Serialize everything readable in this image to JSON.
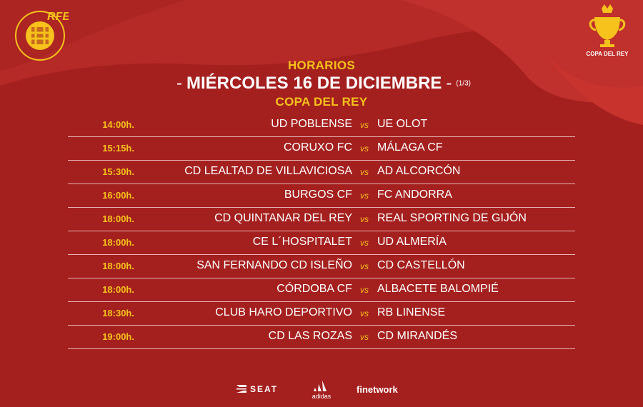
{
  "colors": {
    "background": "#a4201f",
    "accent_yellow": "#f6c21b",
    "text_white": "#ffffff",
    "row_divider": "#e6b3b3"
  },
  "header": {
    "label": "HORARIOS",
    "title": "MIÉRCOLES 16 DE DICIEMBRE",
    "dash_left": "-",
    "dash_right": "-",
    "page_indicator": "(1/3)",
    "competition": "COPA DEL REY"
  },
  "brand": {
    "left_logo_text": "RFEF",
    "right_logo_text": "COPA DEL REY"
  },
  "vs_label": "vs",
  "matches": [
    {
      "time": "14:00h.",
      "home": "UD POBLENSE",
      "away": "UE OLOT"
    },
    {
      "time": "15:15h.",
      "home": "CORUXO FC",
      "away": "MÁLAGA CF"
    },
    {
      "time": "15:30h.",
      "home": "CD LEALTAD DE VILLAVICIOSA",
      "away": "AD ALCORCÓN"
    },
    {
      "time": "16:00h.",
      "home": "BURGOS CF",
      "away": "FC ANDORRA"
    },
    {
      "time": "18:00h.",
      "home": "CD QUINTANAR DEL REY",
      "away": "REAL SPORTING DE GIJÓN"
    },
    {
      "time": "18:00h.",
      "home": "CE L´HOSPITALET",
      "away": "UD ALMERÍA"
    },
    {
      "time": "18:00h.",
      "home": "SAN FERNANDO CD ISLEÑO",
      "away": "CD CASTELLÓN"
    },
    {
      "time": "18:00h.",
      "home": "CÓRDOBA CF",
      "away": "ALBACETE BALOMPIÉ"
    },
    {
      "time": "18:30h.",
      "home": "CLUB HARO DEPORTIVO",
      "away": "RB LINENSE"
    },
    {
      "time": "19:00h.",
      "home": "CD LAS ROZAS",
      "away": "CD MIRANDÉS"
    }
  ],
  "sponsors": {
    "seat": "SEAT",
    "adidas": "adidas",
    "finetwork": "finetwork"
  }
}
